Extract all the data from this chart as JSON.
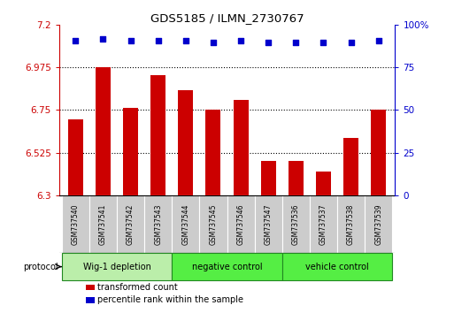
{
  "title": "GDS5185 / ILMN_2730767",
  "samples": [
    "GSM737540",
    "GSM737541",
    "GSM737542",
    "GSM737543",
    "GSM737544",
    "GSM737545",
    "GSM737546",
    "GSM737547",
    "GSM737536",
    "GSM737537",
    "GSM737538",
    "GSM737539"
  ],
  "bar_values": [
    6.7,
    6.975,
    6.76,
    6.935,
    6.855,
    6.75,
    6.805,
    6.48,
    6.48,
    6.425,
    6.6,
    6.75
  ],
  "dot_values": [
    91,
    92,
    91,
    91,
    91,
    90,
    91,
    90,
    90,
    90,
    90,
    91
  ],
  "ylim_left": [
    6.3,
    7.2
  ],
  "ylim_right": [
    0,
    100
  ],
  "yticks_left": [
    6.3,
    6.525,
    6.75,
    6.975,
    7.2
  ],
  "yticks_right": [
    0,
    25,
    50,
    75,
    100
  ],
  "ytick_labels_left": [
    "6.3",
    "6.525",
    "6.75",
    "6.975",
    "7.2"
  ],
  "ytick_labels_right": [
    "0",
    "25",
    "50",
    "75",
    "100%"
  ],
  "bar_color": "#cc0000",
  "dot_color": "#0000cc",
  "groups": [
    {
      "label": "Wig-1 depletion",
      "start": 0,
      "end": 4,
      "color": "#bbeeaa"
    },
    {
      "label": "negative control",
      "start": 4,
      "end": 8,
      "color": "#55ee44"
    },
    {
      "label": "vehicle control",
      "start": 8,
      "end": 12,
      "color": "#55ee44"
    }
  ],
  "protocol_label": "protocol",
  "legend": [
    {
      "color": "#cc0000",
      "label": "transformed count"
    },
    {
      "color": "#0000cc",
      "label": "percentile rank within the sample"
    }
  ],
  "grid_color": "black",
  "tick_area_bg": "#cccccc",
  "group_border_color": "#228822",
  "plot_bg": "white",
  "bar_width": 0.55
}
